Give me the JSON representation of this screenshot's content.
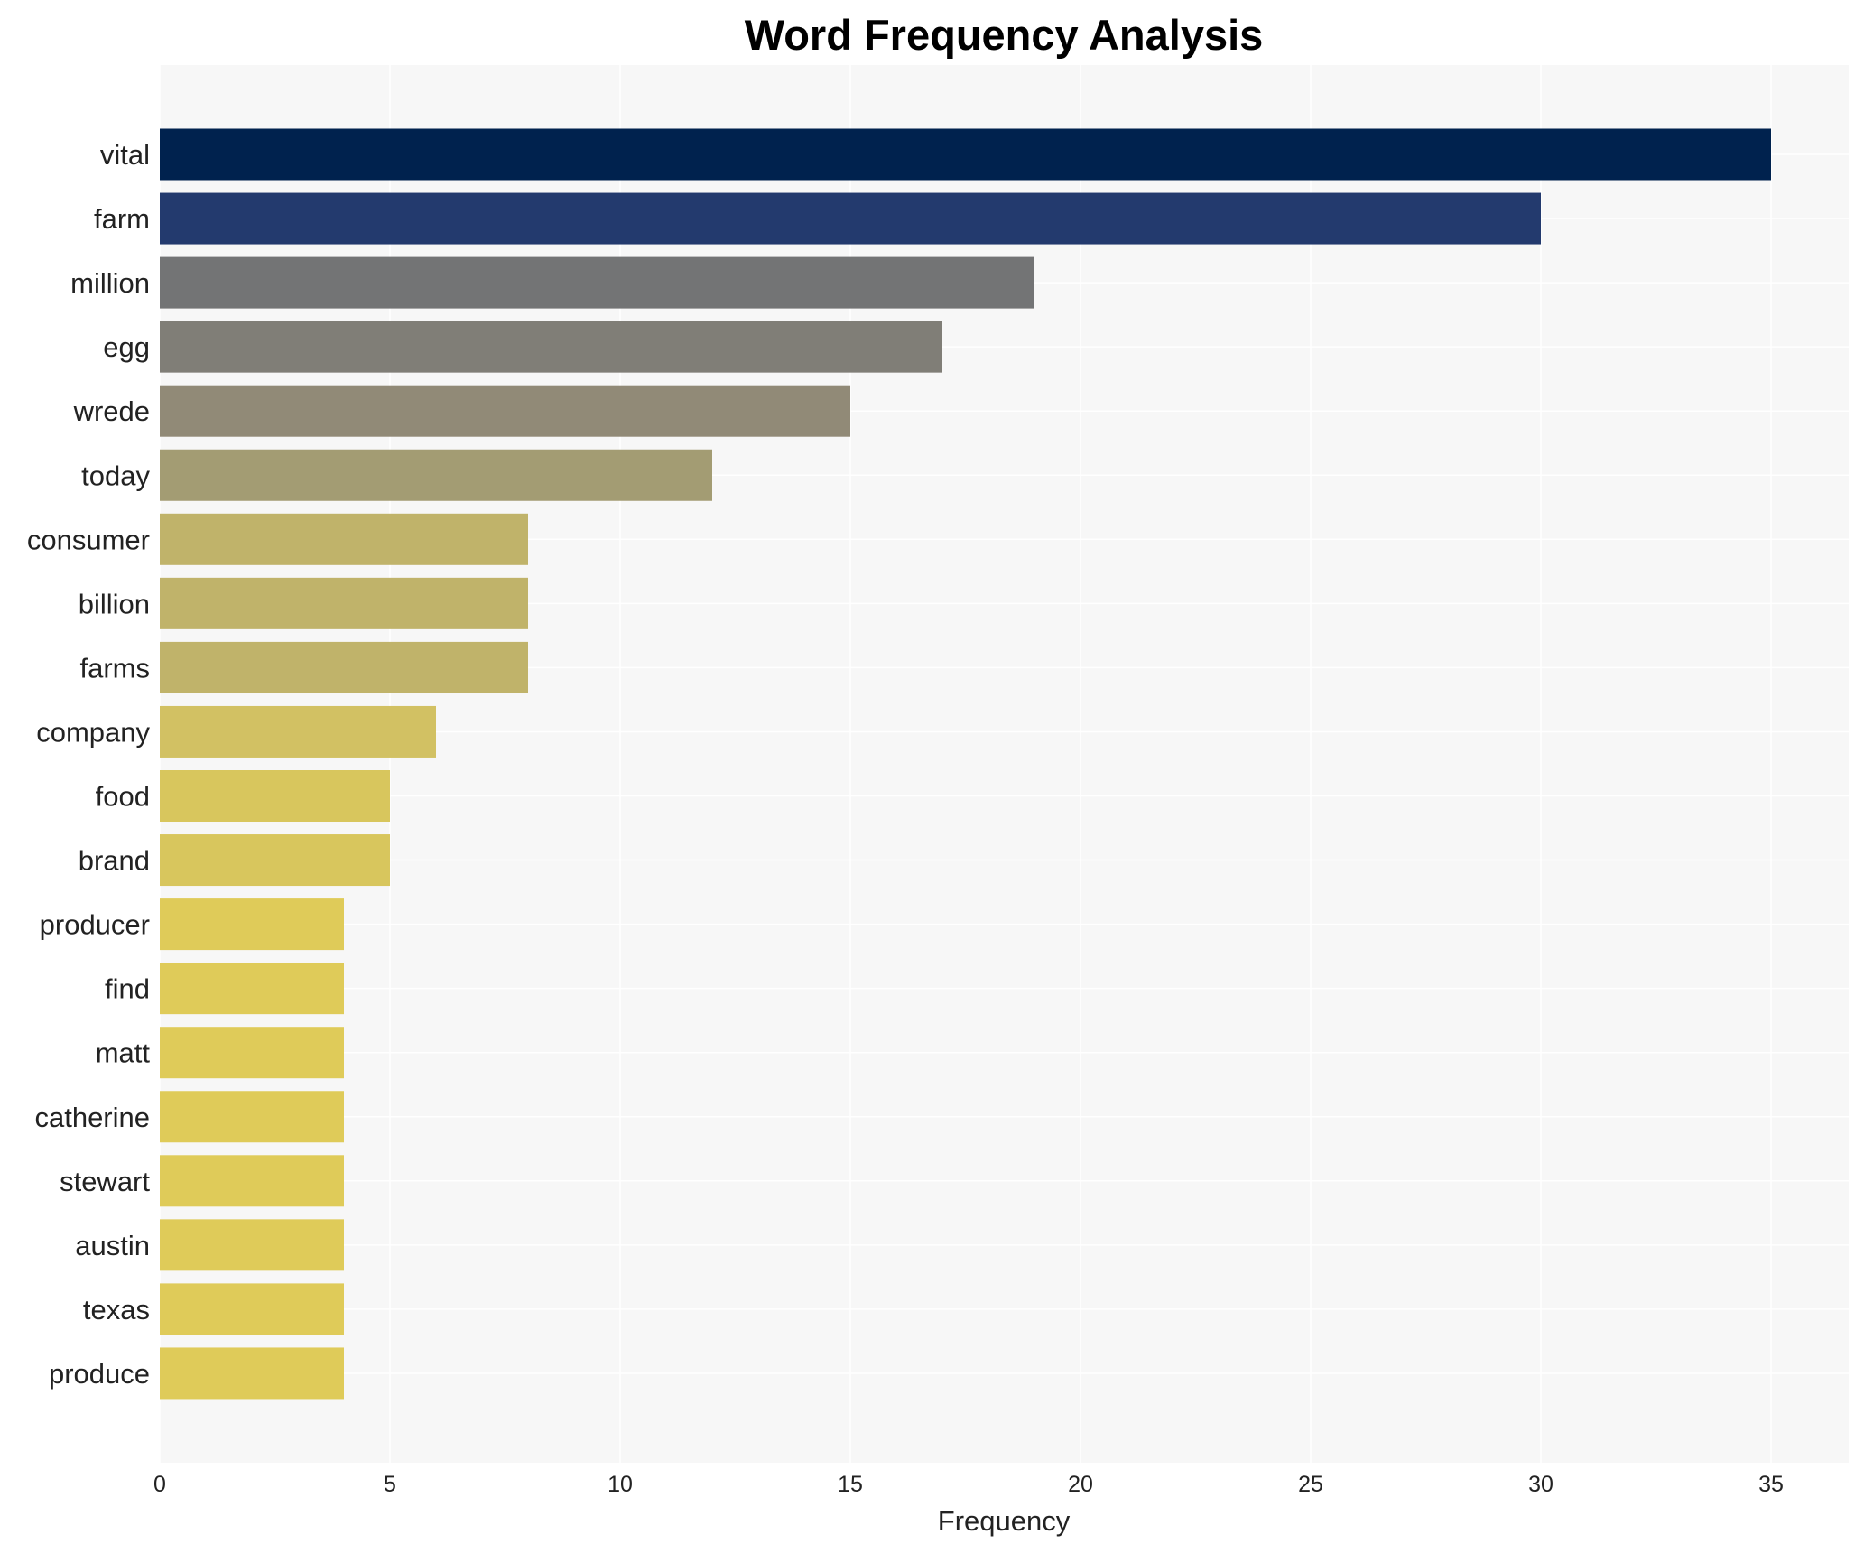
{
  "chart_data": {
    "type": "bar",
    "orientation": "horizontal",
    "title": "Word Frequency Analysis",
    "xlabel": "Frequency",
    "ylabel": "",
    "xlim": [
      0,
      36.8
    ],
    "xticks": [
      0,
      5,
      10,
      15,
      20,
      25,
      30,
      35
    ],
    "grid": true,
    "categories": [
      "vital",
      "farm",
      "million",
      "egg",
      "wrede",
      "today",
      "consumer",
      "billion",
      "farms",
      "company",
      "food",
      "brand",
      "producer",
      "find",
      "matt",
      "catherine",
      "stewart",
      "austin",
      "texas",
      "produce"
    ],
    "values": [
      35,
      30,
      19,
      17,
      15,
      12,
      8,
      8,
      8,
      6,
      5,
      5,
      4,
      4,
      4,
      4,
      4,
      4,
      4,
      4
    ],
    "colors": [
      "#00224e",
      "#233a6e",
      "#737475",
      "#807e77",
      "#918a77",
      "#a39c73",
      "#c0b36a",
      "#c0b36a",
      "#c0b36a",
      "#d2c163",
      "#d8c65d",
      "#d8c65d",
      "#dfcb59",
      "#dfcb59",
      "#dfcb59",
      "#dfcb59",
      "#dfcb59",
      "#dfcb59",
      "#dfcb59",
      "#dfcb59"
    ],
    "background": "#f7f7f7"
  }
}
